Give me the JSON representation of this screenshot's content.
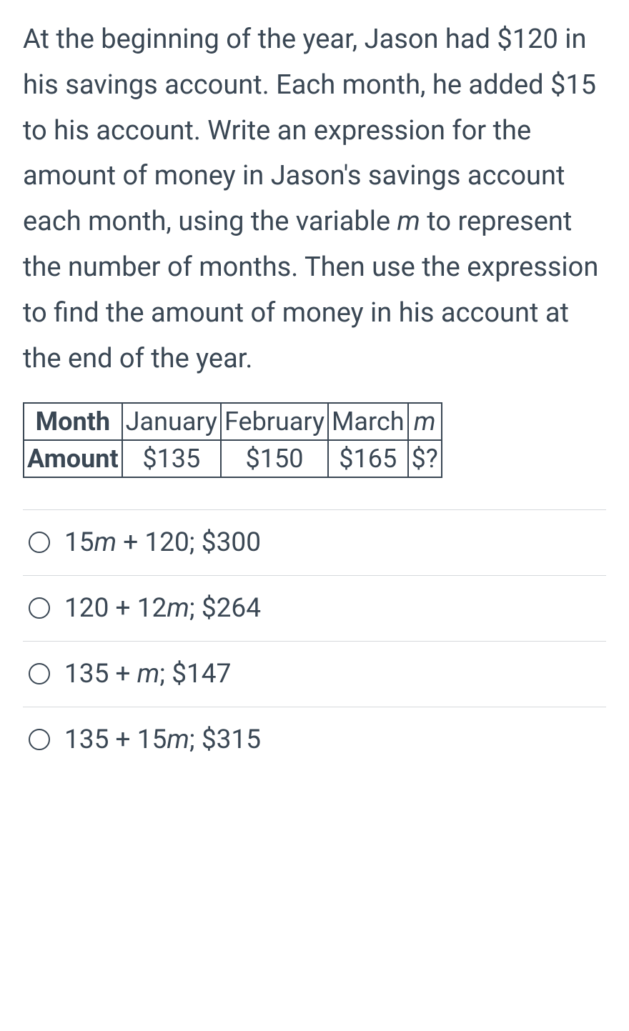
{
  "question": {
    "text_parts": [
      "At the beginning of the year, Jason had $120 in his savings account. Each month, he added $15 to his account. Write an expression for the amount of money in Jason's savings account each month, using the variable ",
      "m",
      " to represent the number of months. Then use the expression to find the amount of money in his account at the end of the year."
    ],
    "color": "#3a4754",
    "fontsize": 38
  },
  "table": {
    "type": "table",
    "border_color": "#3a4754",
    "fontsize": 36,
    "header_labels": [
      "Month",
      "Amount"
    ],
    "columns": [
      "January",
      "February",
      "March",
      "m"
    ],
    "column_italic": [
      false,
      false,
      false,
      true
    ],
    "row2": [
      "$135",
      "$150",
      "$165",
      "$?"
    ]
  },
  "options": {
    "border_color": "#d6d9dc",
    "radio_border": "#3a4754",
    "fontsize": 37,
    "items": [
      {
        "prefix": "15",
        "ivar": "m",
        "suffix": " + 120; $300"
      },
      {
        "prefix": "120 + 12",
        "ivar": "m",
        "suffix": "; $264"
      },
      {
        "prefix": "135 + ",
        "ivar": "m",
        "suffix": "; $147"
      },
      {
        "prefix": "135 + 15",
        "ivar": "m",
        "suffix": "; $315"
      }
    ]
  }
}
